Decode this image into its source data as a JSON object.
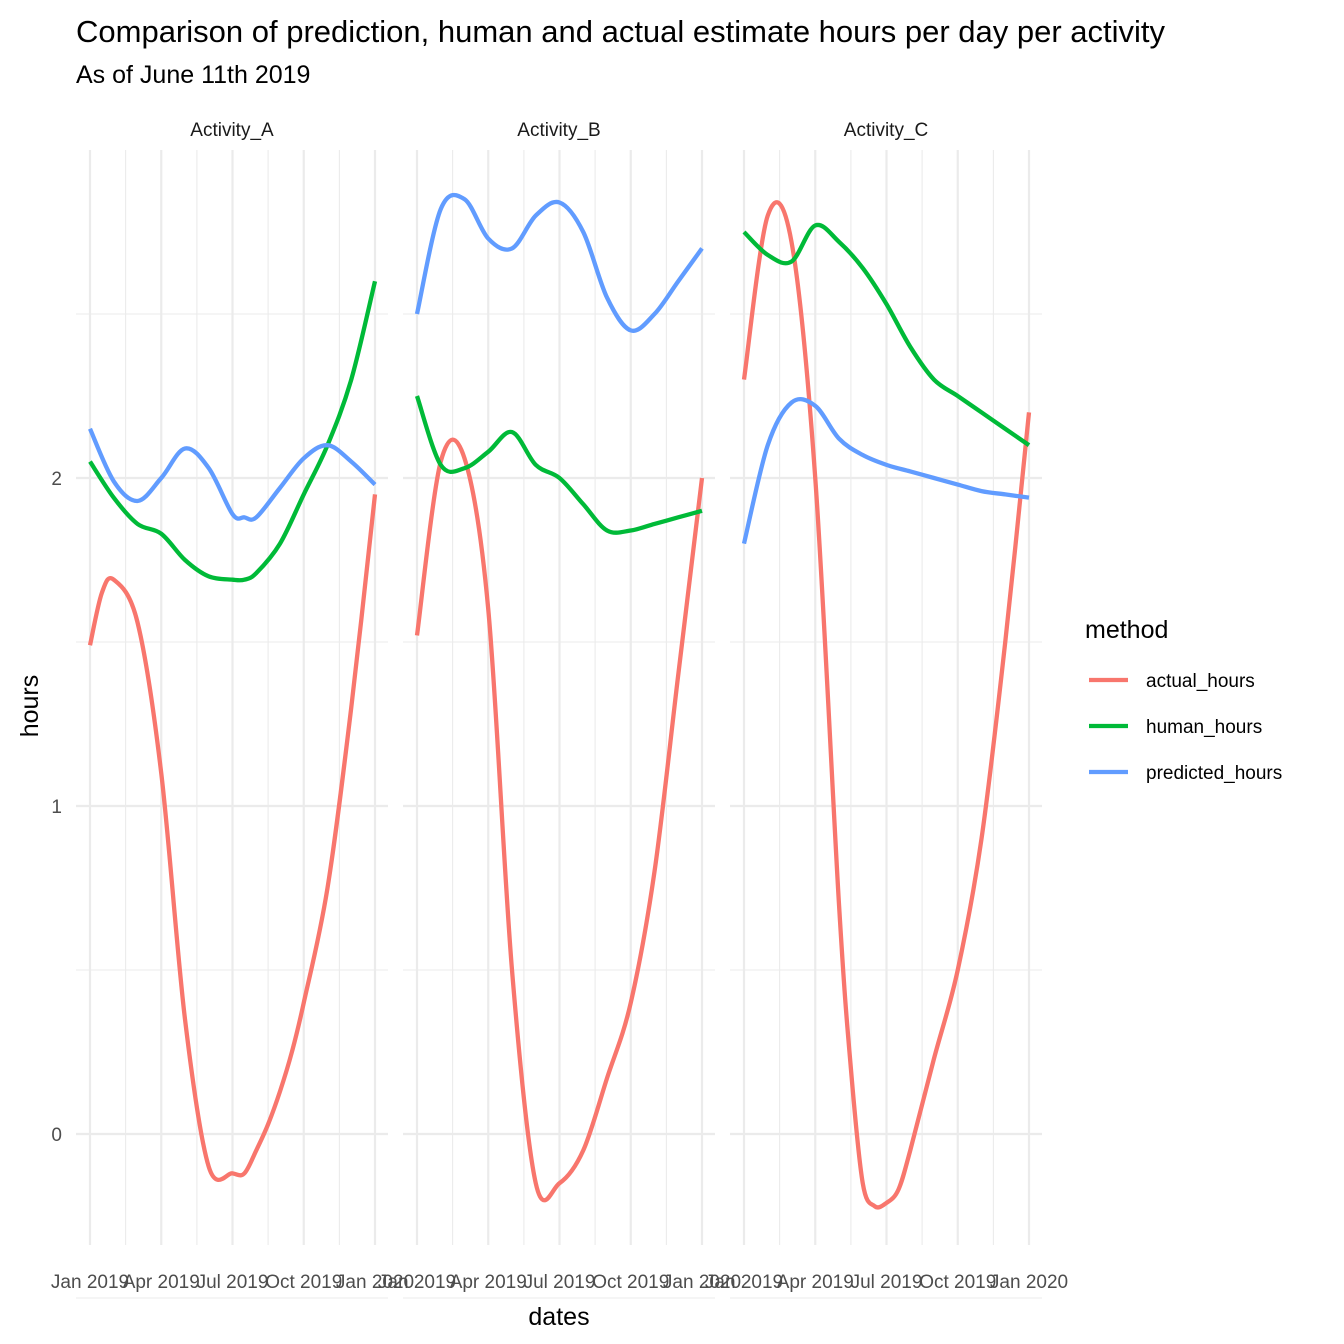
{
  "chart_data": {
    "type": "line",
    "title": "Comparison of prediction, human and actual estimate hours per day per activity",
    "subtitle": "As of June 11th 2019",
    "xlabel": "dates",
    "ylabel": "hours",
    "ylim": [
      -0.3,
      3.0
    ],
    "y_ticks": [
      0,
      1,
      2
    ],
    "x_ticks": [
      "Jan 2019",
      "Apr 2019",
      "Jul 2019",
      "Oct 2019",
      "Jan 2020"
    ],
    "grid": true,
    "legend": {
      "title": "method",
      "position": "right"
    },
    "series_colors": {
      "actual_hours": "#F8766D",
      "human_hours": "#00BA38",
      "predicted_hours": "#619CFF"
    },
    "facets": [
      {
        "name": "Activity_A",
        "series": [
          {
            "name": "actual_hours",
            "x": [
              0,
              0.5,
              1,
              2,
              3,
              4,
              5,
              6,
              6.5,
              7,
              7.5,
              8,
              8.5,
              9,
              10,
              11,
              12
            ],
            "values": [
              1.49,
              1.65,
              1.69,
              1.56,
              1.1,
              0.35,
              -0.1,
              -0.12,
              -0.12,
              -0.05,
              0.03,
              0.13,
              0.25,
              0.4,
              0.75,
              1.3,
              1.95
            ]
          },
          {
            "name": "human_hours",
            "x": [
              0,
              1,
              2,
              3,
              4,
              5,
              6,
              6.5,
              7,
              8,
              9,
              10,
              11,
              12
            ],
            "values": [
              2.05,
              1.94,
              1.86,
              1.83,
              1.75,
              1.7,
              1.69,
              1.69,
              1.71,
              1.8,
              1.95,
              2.1,
              2.3,
              2.6
            ]
          },
          {
            "name": "predicted_hours",
            "x": [
              0,
              1,
              2,
              3,
              4,
              5,
              6,
              6.5,
              7,
              8,
              9,
              10,
              11,
              12
            ],
            "values": [
              2.15,
              1.99,
              1.93,
              2.0,
              2.09,
              2.03,
              1.89,
              1.88,
              1.88,
              1.97,
              2.06,
              2.1,
              2.05,
              1.98
            ]
          }
        ]
      },
      {
        "name": "Activity_B",
        "series": [
          {
            "name": "actual_hours",
            "x": [
              0,
              1,
              2,
              3,
              4,
              5,
              6,
              7,
              8,
              9,
              10,
              11,
              12
            ],
            "values": [
              1.52,
              2.05,
              2.06,
              1.6,
              0.5,
              -0.15,
              -0.15,
              -0.05,
              0.17,
              0.4,
              0.8,
              1.4,
              2.0
            ]
          },
          {
            "name": "human_hours",
            "x": [
              0,
              1,
              2,
              3,
              4,
              5,
              6,
              7,
              8,
              9,
              10,
              11,
              12
            ],
            "values": [
              2.25,
              2.04,
              2.03,
              2.08,
              2.14,
              2.04,
              2.0,
              1.92,
              1.84,
              1.84,
              1.86,
              1.88,
              1.9
            ]
          },
          {
            "name": "predicted_hours",
            "x": [
              0,
              1,
              2,
              3,
              4,
              5,
              6,
              7,
              8,
              9,
              10,
              11,
              12
            ],
            "values": [
              2.5,
              2.82,
              2.85,
              2.73,
              2.7,
              2.8,
              2.84,
              2.75,
              2.55,
              2.45,
              2.5,
              2.6,
              2.7
            ]
          }
        ]
      },
      {
        "name": "Activity_C",
        "series": [
          {
            "name": "actual_hours",
            "x": [
              0,
              1,
              2,
              3,
              4,
              4.5,
              5,
              5.5,
              6,
              6.5,
              7,
              8,
              9,
              10,
              11,
              12
            ],
            "values": [
              2.3,
              2.8,
              2.72,
              2.0,
              0.7,
              0.2,
              -0.15,
              -0.22,
              -0.21,
              -0.17,
              -0.05,
              0.23,
              0.5,
              0.9,
              1.5,
              2.2
            ]
          },
          {
            "name": "human_hours",
            "x": [
              0,
              1,
              2,
              3,
              4,
              5,
              6,
              7,
              8,
              9,
              10,
              11,
              12
            ],
            "values": [
              2.75,
              2.68,
              2.66,
              2.77,
              2.72,
              2.64,
              2.53,
              2.4,
              2.3,
              2.25,
              2.2,
              2.15,
              2.1
            ]
          },
          {
            "name": "predicted_hours",
            "x": [
              0,
              1,
              2,
              3,
              4,
              5,
              6,
              7,
              8,
              9,
              10,
              11,
              12
            ],
            "values": [
              1.8,
              2.1,
              2.23,
              2.22,
              2.12,
              2.07,
              2.04,
              2.02,
              2.0,
              1.98,
              1.96,
              1.95,
              1.94
            ]
          }
        ]
      }
    ]
  }
}
